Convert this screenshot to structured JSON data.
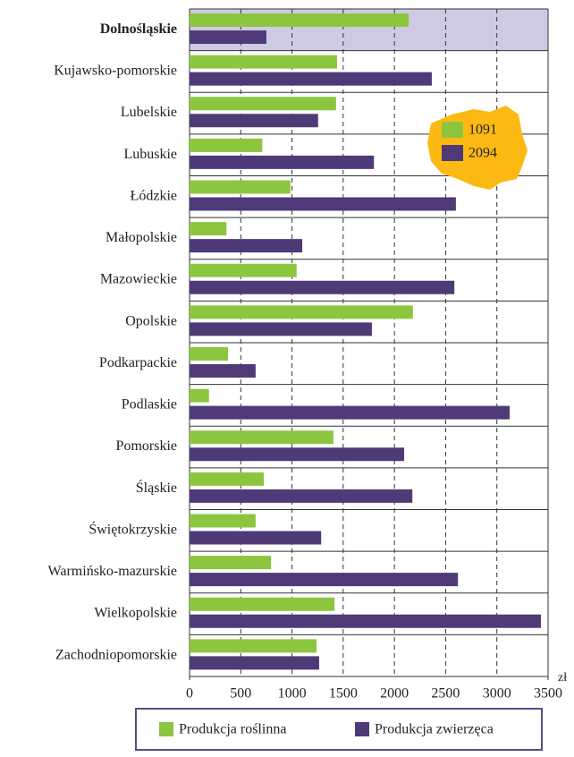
{
  "chart_data": {
    "type": "hbar",
    "categories": [
      "Dolnośląskie",
      "Kujawsko-pomorskie",
      "Lubelskie",
      "Lubuskie",
      "Łódzkie",
      "Małopolskie",
      "Mazowieckie",
      "Opolskie",
      "Podkarpackie",
      "Podlaskie",
      "Pomorskie",
      "Śląskie",
      "Świętokrzyskie",
      "Warmińsko-mazurskie",
      "Wielkopolskie",
      "Zachodniopomorskie"
    ],
    "series": [
      {
        "name": "Produkcja roślinna",
        "color": "#8cc63f",
        "values": [
          2140,
          1440,
          1430,
          710,
          985,
          360,
          1045,
          2180,
          375,
          190,
          1405,
          725,
          645,
          795,
          1415,
          1240
        ]
      },
      {
        "name": "Produkcja zwierzęca",
        "color": "#4f3a78",
        "values": [
          750,
          2365,
          1255,
          1800,
          2600,
          1100,
          2585,
          1780,
          645,
          3125,
          2095,
          2175,
          1285,
          2620,
          3430,
          1265
        ]
      }
    ],
    "highlight": 0,
    "xlim": [
      0,
      3500
    ],
    "xticks": [
      0,
      500,
      1000,
      1500,
      2000,
      2500,
      3000,
      3500
    ],
    "xlabel": "zł",
    "grid": true,
    "inset": {
      "values": [
        1091,
        2094
      ]
    }
  }
}
